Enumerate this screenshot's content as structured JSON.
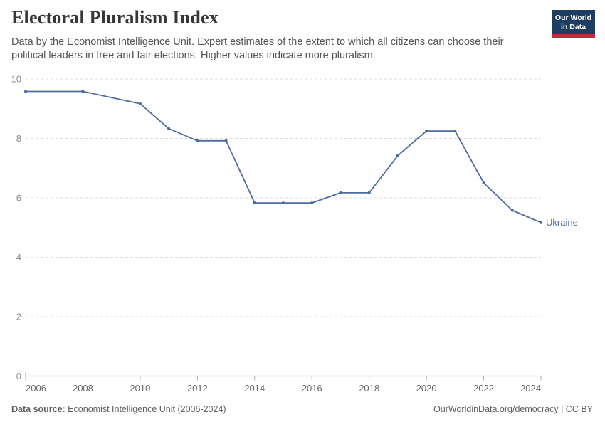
{
  "header": {
    "title": "Electoral Pluralism Index",
    "subtitle": "Data by the Economist Intelligence Unit. Expert estimates of the extent to which all citizens can choose their political leaders in free and fair elections. Higher values indicate more pluralism.",
    "logo": {
      "line1": "Our World",
      "line2": "in Data"
    }
  },
  "chart_data": {
    "type": "line",
    "title": "Electoral Pluralism Index",
    "xlabel": "",
    "ylabel": "",
    "xlim": [
      2006,
      2024
    ],
    "ylim": [
      0,
      10
    ],
    "xticks": [
      2006,
      2008,
      2010,
      2012,
      2014,
      2016,
      2018,
      2020,
      2022,
      2024
    ],
    "yticks": [
      0,
      2,
      4,
      6,
      8,
      10
    ],
    "grid": "horizontal-dashed",
    "legend": "end-of-line-label",
    "series": [
      {
        "name": "Ukraine",
        "color": "#4d6ba3",
        "points": [
          [
            2006,
            9.58
          ],
          [
            2008,
            9.58
          ],
          [
            2010,
            9.17
          ],
          [
            2011,
            8.33
          ],
          [
            2012,
            7.92
          ],
          [
            2013,
            7.92
          ],
          [
            2014,
            5.83
          ],
          [
            2015,
            5.83
          ],
          [
            2016,
            5.83
          ],
          [
            2017,
            6.17
          ],
          [
            2018,
            6.17
          ],
          [
            2019,
            7.42
          ],
          [
            2020,
            8.25
          ],
          [
            2021,
            8.25
          ],
          [
            2022,
            6.5
          ],
          [
            2023,
            5.58
          ],
          [
            2024,
            5.17
          ]
        ]
      }
    ]
  },
  "footer": {
    "source_label": "Data source:",
    "source_text": " Economist Intelligence Unit (2006-2024)",
    "right_text": "OurWorldinData.org/democracy | CC BY"
  },
  "colors": {
    "line": "#4d6ba3",
    "logo_bg": "#1d3d63",
    "logo_accent": "#c12a3a",
    "grid": "#dcdcdc",
    "axis": "#c8c8c8",
    "tick": "#adadad",
    "y_label": "#8f8f8f",
    "x_label": "#696969",
    "title_text": "#373737",
    "subtitle_text": "#565656",
    "footer_text": "#5e5e5e"
  }
}
